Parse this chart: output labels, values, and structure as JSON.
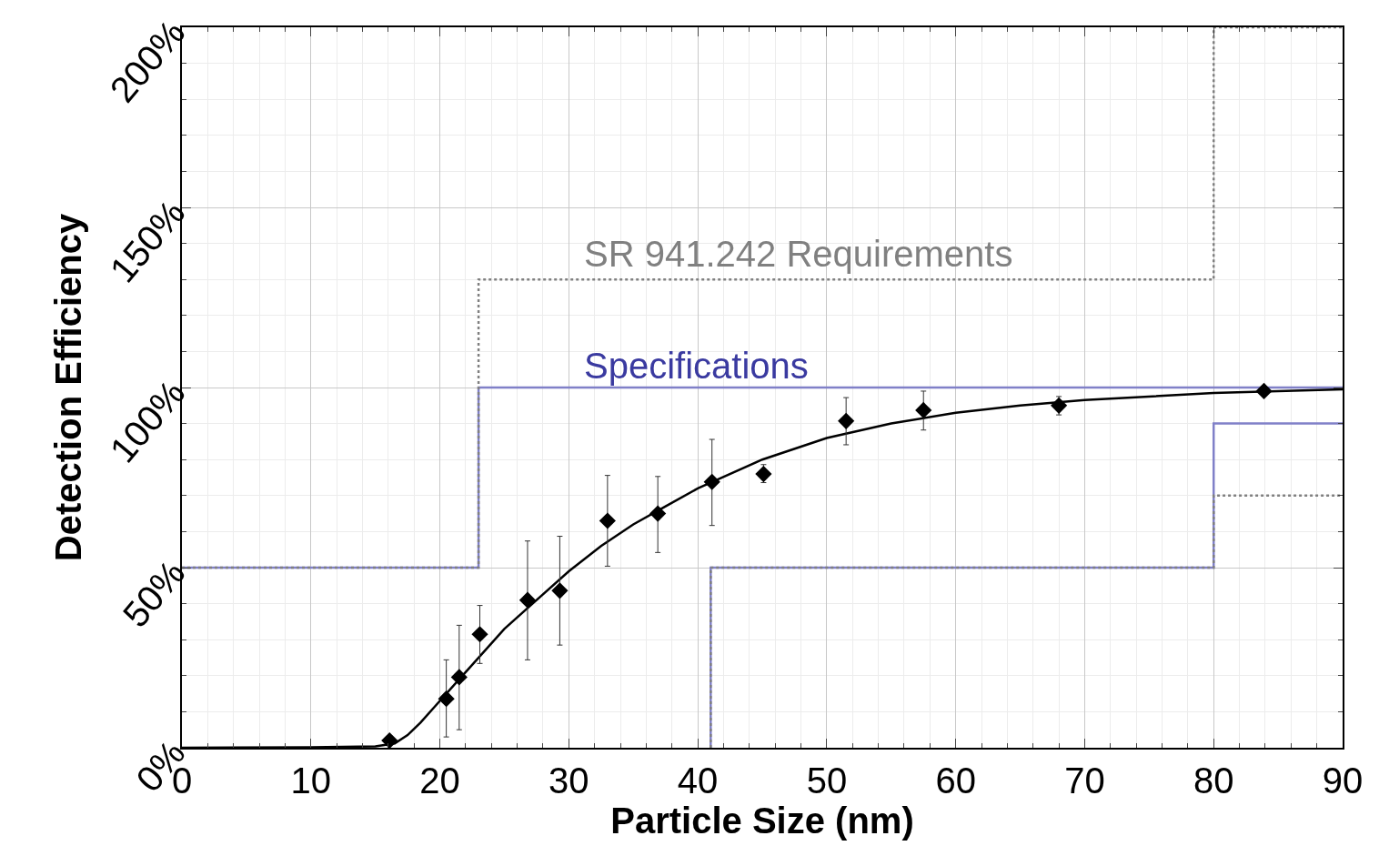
{
  "chart_data": {
    "type": "scatter",
    "xlabel": "Particle Size (nm)",
    "ylabel": "Detection Efficiency",
    "xlim": [
      0,
      90
    ],
    "xticks": [
      0,
      10,
      20,
      30,
      40,
      50,
      60,
      70,
      80,
      90
    ],
    "ylim": [
      0,
      200
    ],
    "yticks": [
      {
        "value": 0,
        "label": "0%"
      },
      {
        "value": 50,
        "label": "50%"
      },
      {
        "value": 100,
        "label": "100%"
      },
      {
        "value": 150,
        "label": "150%"
      },
      {
        "value": 200,
        "label": "200%"
      }
    ],
    "grid": true,
    "series": [
      {
        "type": "line",
        "color": "#8080c8",
        "line_style": "solid",
        "marker": "none",
        "x": [
          0,
          23,
          23,
          90
        ],
        "values": [
          50,
          50,
          100,
          100
        ]
      },
      {
        "type": "line",
        "color": "#8080c8",
        "line_style": "solid",
        "marker": "none",
        "x": [
          41,
          41,
          80,
          80,
          90
        ],
        "values": [
          0,
          50,
          50,
          90,
          90
        ]
      },
      {
        "type": "line",
        "color": "#808080",
        "line_style": "dotted",
        "marker": "none",
        "x": [
          0,
          23,
          23,
          80,
          80,
          90
        ],
        "values": [
          50,
          50,
          130,
          130,
          200,
          200
        ]
      },
      {
        "type": "line",
        "color": "#808080",
        "line_style": "dotted",
        "marker": "none",
        "x": [
          41,
          41,
          80,
          80,
          90
        ],
        "values": [
          0,
          50,
          50,
          70,
          70
        ]
      },
      {
        "type": "line",
        "color": "#000000",
        "line_style": "solid",
        "marker": "none",
        "x": [
          0,
          10,
          15,
          16.5,
          17.5,
          18.5,
          20,
          22,
          25,
          27.5,
          30,
          32.5,
          35,
          37.5,
          40,
          45,
          50,
          55,
          60,
          65,
          70,
          80,
          90
        ],
        "values": [
          0,
          0.1,
          0.4,
          1.2,
          3.5,
          7,
          13,
          21,
          33,
          41,
          49,
          56,
          62,
          67,
          72,
          80,
          86,
          90,
          93,
          95,
          96.5,
          98.5,
          99.5
        ]
      },
      {
        "color": "#000000",
        "marker": "diamond",
        "x": [
          16.1,
          20.5,
          21.5,
          23.1,
          26.8,
          29.3,
          33.0,
          36.9,
          41.1,
          45.1,
          51.5,
          57.5,
          68.0,
          83.9
        ],
        "values": [
          2,
          13.6,
          19.6,
          31.5,
          41,
          43.6,
          63,
          65,
          73.8,
          76,
          90.7,
          93.7,
          95,
          99
        ],
        "errors": [
          null,
          [
            3,
            24.4
          ],
          [
            5,
            34
          ],
          [
            23.4,
            39.5
          ],
          [
            24.4,
            57.4
          ],
          [
            28.5,
            58.7
          ],
          [
            50.4,
            75.6
          ],
          [
            54.2,
            75.3
          ],
          [
            61.7,
            85.6
          ],
          [
            73.6,
            78.6
          ],
          [
            84.1,
            97.2
          ],
          [
            88.2,
            99
          ],
          [
            92.4,
            97.5
          ],
          null
        ]
      }
    ],
    "annotations": [
      "SR 941.242 Requirements",
      "Specifications"
    ]
  }
}
